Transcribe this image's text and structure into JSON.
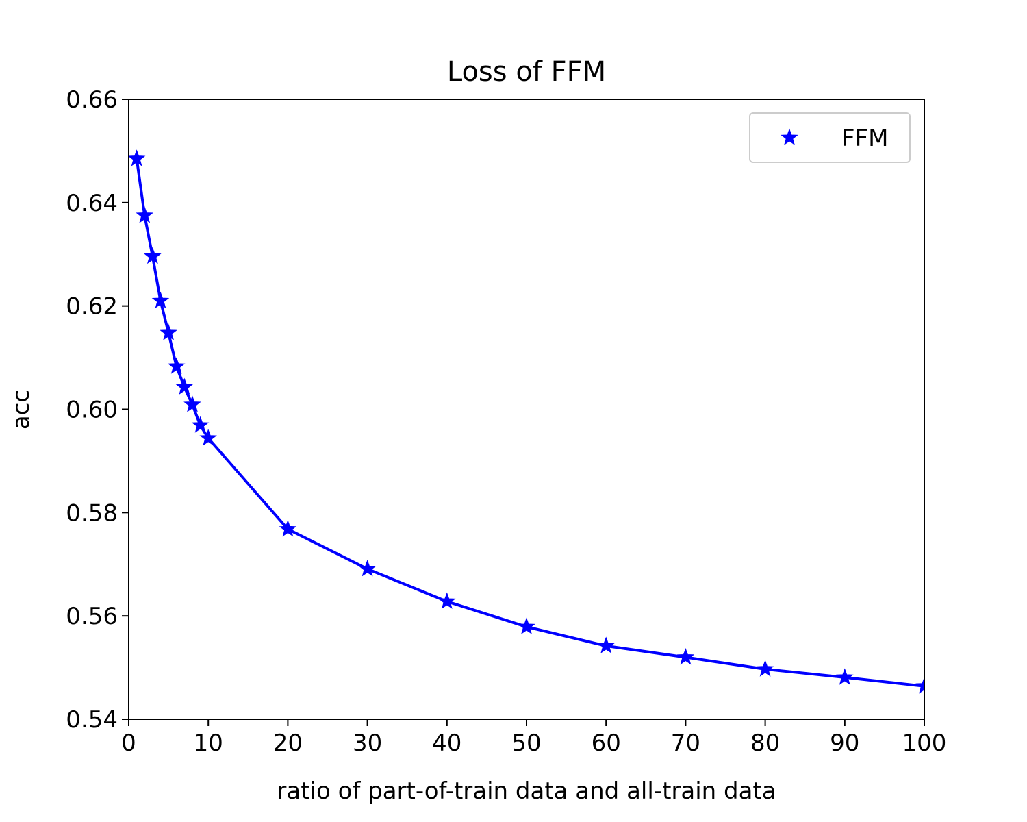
{
  "chart_data": {
    "type": "line",
    "title": "Loss of FFM",
    "xlabel": "ratio of part-of-train data and all-train data",
    "ylabel": "acc",
    "xlim": [
      0,
      100
    ],
    "ylim": [
      0.54,
      0.66
    ],
    "xticks": [
      0,
      10,
      20,
      30,
      40,
      50,
      60,
      70,
      80,
      90,
      100
    ],
    "xtick_labels": [
      "0",
      "10",
      "20",
      "30",
      "40",
      "50",
      "60",
      "70",
      "80",
      "90",
      "100"
    ],
    "yticks": [
      0.54,
      0.56,
      0.58,
      0.6,
      0.62,
      0.64,
      0.66
    ],
    "ytick_labels": [
      "0.54",
      "0.56",
      "0.58",
      "0.60",
      "0.62",
      "0.64",
      "0.66"
    ],
    "grid": false,
    "legend": {
      "placement": "top-right"
    },
    "series": [
      {
        "name": "FFM",
        "color": "#0000ff",
        "marker": "star",
        "x": [
          1,
          2,
          3,
          4,
          5,
          6,
          7,
          8,
          9,
          10,
          20,
          30,
          40,
          50,
          60,
          70,
          80,
          90,
          100
        ],
        "y": [
          0.6485,
          0.6375,
          0.6296,
          0.621,
          0.6148,
          0.6083,
          0.6043,
          0.6009,
          0.5969,
          0.5944,
          0.5768,
          0.5691,
          0.5628,
          0.5579,
          0.5542,
          0.552,
          0.5497,
          0.5481,
          0.5464
        ]
      }
    ]
  }
}
